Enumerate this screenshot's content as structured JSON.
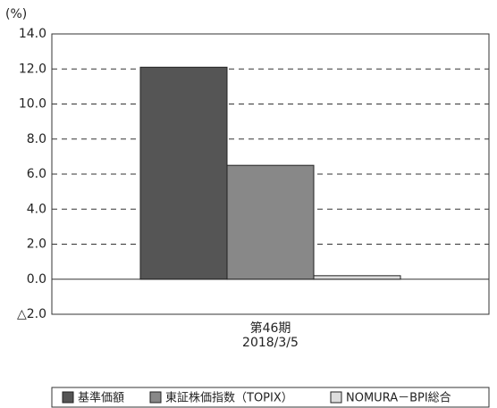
{
  "chart_data": {
    "type": "bar",
    "ylabel": "(%)",
    "categories": [
      "第46期"
    ],
    "category_dates": [
      "2018/3/5"
    ],
    "series": [
      {
        "name": "基準価額",
        "color": "#555555",
        "values": [
          12.1
        ]
      },
      {
        "name": "東証株価指数（TOPIX）",
        "color": "#888888",
        "values": [
          6.5
        ]
      },
      {
        "name": "NOMURA－BPI総合",
        "color": "#dddddd",
        "values": [
          0.2
        ]
      }
    ],
    "ylim": [
      -2,
      14
    ],
    "yticks": [
      {
        "value": -2,
        "label": "△2.0"
      },
      {
        "value": 0,
        "label": "0.0"
      },
      {
        "value": 2,
        "label": "2.0"
      },
      {
        "value": 4,
        "label": "4.0"
      },
      {
        "value": 6,
        "label": "6.0"
      },
      {
        "value": 8,
        "label": "8.0"
      },
      {
        "value": 10,
        "label": "10.0"
      },
      {
        "value": 12,
        "label": "12.0"
      },
      {
        "value": 14,
        "label": "14.0"
      }
    ],
    "grid": true,
    "legend": "bottom"
  }
}
